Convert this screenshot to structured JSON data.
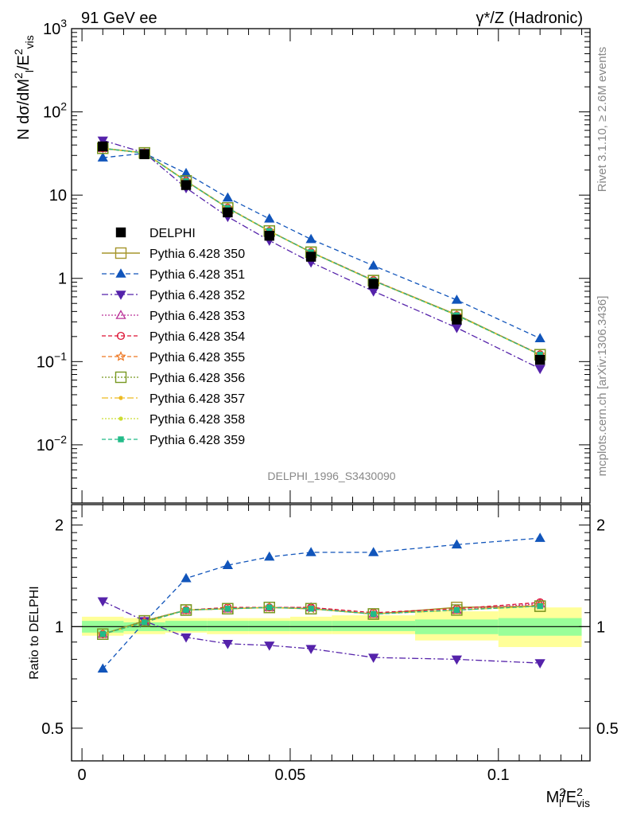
{
  "header": {
    "left": "91 GeV ee",
    "right": "γ*/Z (Hadronic)"
  },
  "side": {
    "rivet": "Rivet 3.1.10, ≥ 2.6M events",
    "mcplots": "mcplots.cern.ch [arXiv:1306.3436]"
  },
  "analysis_label": "DELPHI_1996_S3430090",
  "colors": {
    "band_inner": "#99ff99",
    "band_outer": "#ffff99",
    "data": "#000000"
  },
  "chart_data": [
    {
      "type": "line",
      "panel": "main",
      "yscale": "log",
      "xlim": [
        -0.0025,
        0.122
      ],
      "ylim": [
        0.002,
        1000
      ],
      "ylabel": "N dσ/dM_l^2/E_vis^2",
      "y_ticks": [
        "10^-2",
        "10^-1",
        "1",
        "10",
        "10^2",
        "10^3"
      ],
      "legend_position": "left-middle",
      "x": [
        0.005,
        0.015,
        0.025,
        0.035,
        0.045,
        0.055,
        0.07,
        0.09,
        0.11
      ],
      "x_edges": [
        0,
        0.01,
        0.02,
        0.03,
        0.04,
        0.05,
        0.06,
        0.08,
        0.1,
        0.12
      ],
      "series": [
        {
          "name": "DELPHI",
          "color": "#000000",
          "marker": "filled-square",
          "dash": "none",
          "values": [
            38.5,
            31.0,
            13.2,
            6.2,
            3.25,
            1.82,
            0.86,
            0.32,
            0.105
          ]
        },
        {
          "name": "Pythia 6.428 350",
          "color": "#a5952b",
          "marker": "open-square",
          "dash": "solid",
          "values": [
            36.5,
            32.2,
            14.8,
            7.0,
            3.7,
            2.06,
            0.94,
            0.365,
            0.121
          ]
        },
        {
          "name": "Pythia 6.428 351",
          "color": "#1155bb",
          "marker": "filled-triangle-up",
          "dash": "6,4",
          "values": [
            28.2,
            31.8,
            18.3,
            9.3,
            5.2,
            2.95,
            1.42,
            0.55,
            0.19
          ]
        },
        {
          "name": "Pythia 6.428 352",
          "color": "#5522aa",
          "marker": "filled-triangle-down",
          "dash": "8,3,2,3",
          "values": [
            45.5,
            32.2,
            12.2,
            5.5,
            2.85,
            1.56,
            0.7,
            0.255,
            0.082
          ]
        },
        {
          "name": "Pythia 6.428 353",
          "color": "#bb3399",
          "marker": "open-triangle-up",
          "dash": "2,2",
          "values": [
            36.6,
            32.1,
            14.7,
            7.0,
            3.72,
            2.07,
            0.94,
            0.36,
            0.122
          ]
        },
        {
          "name": "Pythia 6.428 354",
          "color": "#dd1133",
          "marker": "open-circle",
          "dash": "5,3",
          "values": [
            36.5,
            32.0,
            14.8,
            7.05,
            3.7,
            2.07,
            0.95,
            0.36,
            0.122
          ]
        },
        {
          "name": "Pythia 6.428 355",
          "color": "#ee7722",
          "marker": "open-star",
          "dash": "5,3",
          "values": [
            36.5,
            32.0,
            14.8,
            7.0,
            3.7,
            2.06,
            0.94,
            0.36,
            0.121
          ]
        },
        {
          "name": "Pythia 6.428 356",
          "color": "#779922",
          "marker": "open-square",
          "dash": "2,2",
          "values": [
            36.6,
            32.1,
            14.8,
            7.0,
            3.7,
            2.06,
            0.94,
            0.36,
            0.121
          ]
        },
        {
          "name": "Pythia 6.428 357",
          "color": "#eebb22",
          "marker": "small-filled-circle",
          "dash": "8,3,2,3",
          "values": [
            36.5,
            32.0,
            14.8,
            7.0,
            3.7,
            2.06,
            0.94,
            0.36,
            0.121
          ]
        },
        {
          "name": "Pythia 6.428 358",
          "color": "#ccdd33",
          "marker": "small-filled-circle",
          "dash": "2,2",
          "values": [
            36.5,
            32.0,
            14.8,
            7.0,
            3.7,
            2.06,
            0.94,
            0.36,
            0.121
          ]
        },
        {
          "name": "Pythia 6.428 359",
          "color": "#22bb88",
          "marker": "small-filled-square",
          "dash": "5,3",
          "values": [
            36.5,
            32.0,
            14.7,
            7.0,
            3.7,
            2.06,
            0.94,
            0.36,
            0.121
          ]
        }
      ]
    },
    {
      "type": "line",
      "panel": "ratio",
      "yscale": "log",
      "xlim": [
        -0.0025,
        0.122
      ],
      "ylim": [
        0.4,
        2.3
      ],
      "ylabel": "Ratio to DELPHI",
      "xlabel": "M_l^2/E_vis^2",
      "x_ticks": [
        "0",
        "0.05",
        "0.1"
      ],
      "y_ticks": [
        "0.5",
        "1",
        "2"
      ],
      "x": [
        0.005,
        0.015,
        0.025,
        0.035,
        0.045,
        0.055,
        0.07,
        0.09,
        0.11
      ],
      "x_edges": [
        0,
        0.01,
        0.02,
        0.03,
        0.04,
        0.05,
        0.06,
        0.08,
        0.1,
        0.12
      ],
      "band_inner": [
        [
          0.96,
          1.04
        ],
        [
          0.97,
          1.03
        ],
        [
          0.97,
          1.04
        ],
        [
          0.97,
          1.04
        ],
        [
          0.97,
          1.04
        ],
        [
          0.97,
          1.04
        ],
        [
          0.97,
          1.04
        ],
        [
          0.95,
          1.05
        ],
        [
          0.94,
          1.06
        ]
      ],
      "band_outer": [
        [
          0.94,
          1.07
        ],
        [
          0.95,
          1.06
        ],
        [
          0.96,
          1.06
        ],
        [
          0.95,
          1.06
        ],
        [
          0.95,
          1.06
        ],
        [
          0.95,
          1.07
        ],
        [
          0.95,
          1.08
        ],
        [
          0.91,
          1.11
        ],
        [
          0.87,
          1.14
        ]
      ],
      "series": [
        {
          "name": "Pythia 6.428 350",
          "values": [
            0.95,
            1.04,
            1.12,
            1.13,
            1.14,
            1.13,
            1.09,
            1.14,
            1.15
          ]
        },
        {
          "name": "Pythia 6.428 351",
          "values": [
            0.75,
            1.03,
            1.39,
            1.52,
            1.61,
            1.66,
            1.66,
            1.75,
            1.83
          ]
        },
        {
          "name": "Pythia 6.428 352",
          "values": [
            1.19,
            1.04,
            0.93,
            0.89,
            0.88,
            0.86,
            0.81,
            0.8,
            0.78
          ]
        },
        {
          "name": "Pythia 6.428 353",
          "values": [
            0.95,
            1.04,
            1.12,
            1.13,
            1.14,
            1.14,
            1.09,
            1.12,
            1.17
          ]
        },
        {
          "name": "Pythia 6.428 354",
          "values": [
            0.95,
            1.03,
            1.12,
            1.14,
            1.14,
            1.14,
            1.1,
            1.13,
            1.18
          ]
        },
        {
          "name": "Pythia 6.428 355",
          "values": [
            0.95,
            1.03,
            1.12,
            1.13,
            1.14,
            1.13,
            1.09,
            1.12,
            1.16
          ]
        },
        {
          "name": "Pythia 6.428 356",
          "values": [
            0.95,
            1.04,
            1.12,
            1.13,
            1.14,
            1.13,
            1.09,
            1.12,
            1.15
          ]
        },
        {
          "name": "Pythia 6.428 357",
          "values": [
            0.95,
            1.03,
            1.12,
            1.13,
            1.14,
            1.13,
            1.09,
            1.12,
            1.15
          ]
        },
        {
          "name": "Pythia 6.428 358",
          "values": [
            0.95,
            1.03,
            1.12,
            1.13,
            1.14,
            1.13,
            1.09,
            1.12,
            1.15
          ]
        },
        {
          "name": "Pythia 6.428 359",
          "values": [
            0.95,
            1.03,
            1.12,
            1.13,
            1.14,
            1.13,
            1.09,
            1.12,
            1.15
          ]
        }
      ]
    }
  ]
}
